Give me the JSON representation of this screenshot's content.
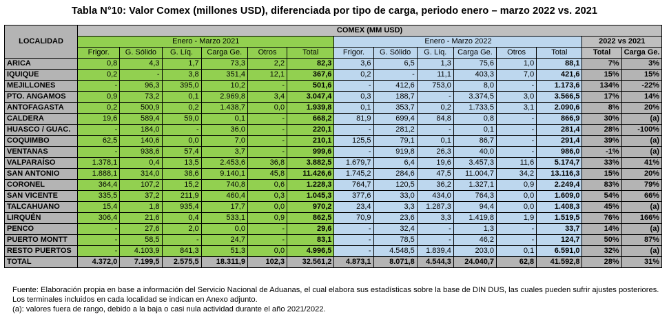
{
  "title": "Tabla N°10: Valor Comex (millones USD), diferenciada por tipo de carga, periodo enero – marzo 2022 vs. 2021",
  "headers": {
    "localidad": "LOCALIDAD",
    "comex": "COMEX (MM USD)",
    "period_2021": "Enero - Marzo 2021",
    "period_2022": "Enero - Marzo 2022",
    "comparison": "2022 vs 2021",
    "cols_2021": [
      "Frigor.",
      "G. Sólido",
      "G. Líq.",
      "Carga Ge.",
      "Otros",
      "Total"
    ],
    "cols_2022": [
      "Frigor.",
      "G. Sólido",
      "G. Líq.",
      "Carga Ge.",
      "Otros",
      "Total"
    ],
    "cols_cmp": [
      "Total",
      "Carga Ge."
    ]
  },
  "rows": [
    {
      "loc": "ARICA",
      "v": [
        "0,8",
        "4,3",
        "1,7",
        "73,3",
        "2,2",
        "82,3",
        "3,6",
        "6,5",
        "1,3",
        "75,6",
        "1,0",
        "88,1",
        "7%",
        "3%"
      ]
    },
    {
      "loc": "IQUIQUE",
      "v": [
        "0,2",
        "-",
        "3,8",
        "351,4",
        "12,1",
        "367,6",
        "0,2",
        "-",
        "11,1",
        "403,3",
        "7,0",
        "421,6",
        "15%",
        "15%"
      ]
    },
    {
      "loc": "MEJILLONES",
      "v": [
        "-",
        "96,3",
        "395,0",
        "10,2",
        "-",
        "501,6",
        "-",
        "412,6",
        "753,0",
        "8,0",
        "-",
        "1.173,6",
        "134%",
        "-22%"
      ]
    },
    {
      "loc": "PTO. ANGAMOS",
      "v": [
        "0,9",
        "73,2",
        "0,1",
        "2.969,8",
        "3,4",
        "3.047,4",
        "0,3",
        "188,7",
        "-",
        "3.374,5",
        "3,0",
        "3.566,5",
        "17%",
        "14%"
      ]
    },
    {
      "loc": "ANTOFAGASTA",
      "v": [
        "0,2",
        "500,9",
        "0,2",
        "1.438,7",
        "0,0",
        "1.939,8",
        "0,1",
        "353,7",
        "0,2",
        "1.733,5",
        "3,1",
        "2.090,6",
        "8%",
        "20%"
      ]
    },
    {
      "loc": "CALDERA",
      "v": [
        "19,6",
        "589,4",
        "59,0",
        "0,1",
        "-",
        "668,2",
        "81,9",
        "699,4",
        "84,8",
        "0,8",
        "-",
        "866,9",
        "30%",
        "(a)"
      ]
    },
    {
      "loc": "HUASCO / GUAC.",
      "v": [
        "-",
        "184,0",
        "-",
        "36,0",
        "-",
        "220,1",
        "-",
        "281,2",
        "-",
        "0,1",
        "-",
        "281,4",
        "28%",
        "-100%"
      ]
    },
    {
      "loc": "COQUIMBO",
      "v": [
        "62,5",
        "140,6",
        "0,0",
        "7,0",
        "-",
        "210,1",
        "125,5",
        "79,1",
        "0,1",
        "86,7",
        "-",
        "291,4",
        "39%",
        "(a)"
      ]
    },
    {
      "loc": "VENTANAS",
      "v": [
        "-",
        "938,6",
        "57,4",
        "3,7",
        "-",
        "999,6",
        "-",
        "919,8",
        "26,3",
        "40,0",
        "-",
        "986,0",
        "-1%",
        "(a)"
      ]
    },
    {
      "loc": "VALPARAÍSO",
      "v": [
        "1.378,1",
        "0,4",
        "13,5",
        "2.453,6",
        "36,8",
        "3.882,5",
        "1.679,7",
        "6,4",
        "19,6",
        "3.457,3",
        "11,6",
        "5.174,7",
        "33%",
        "41%"
      ]
    },
    {
      "loc": "SAN ANTONIO",
      "v": [
        "1.888,1",
        "314,0",
        "38,6",
        "9.140,1",
        "45,8",
        "11.426,6",
        "1.745,2",
        "284,6",
        "47,5",
        "11.004,7",
        "34,2",
        "13.116,3",
        "15%",
        "20%"
      ]
    },
    {
      "loc": "CORONEL",
      "v": [
        "364,4",
        "107,2",
        "15,2",
        "740,8",
        "0,6",
        "1.228,3",
        "764,7",
        "120,5",
        "36,2",
        "1.327,1",
        "0,9",
        "2.249,4",
        "83%",
        "79%"
      ]
    },
    {
      "loc": "SAN VICENTE",
      "v": [
        "335,5",
        "37,2",
        "211,9",
        "460,4",
        "0,3",
        "1.045,3",
        "377,6",
        "33,0",
        "434,0",
        "764,3",
        "0,0",
        "1.609,0",
        "54%",
        "66%"
      ]
    },
    {
      "loc": "TALCAHUANO",
      "v": [
        "15,4",
        "1,8",
        "935,4",
        "17,7",
        "0,0",
        "970,2",
        "23,4",
        "3,3",
        "1.287,3",
        "94,4",
        "0,0",
        "1.408,3",
        "45%",
        "(a)"
      ]
    },
    {
      "loc": "LIRQUÉN",
      "v": [
        "306,4",
        "21,6",
        "0,4",
        "533,1",
        "0,9",
        "862,5",
        "70,9",
        "23,6",
        "3,3",
        "1.419,8",
        "1,9",
        "1.519,5",
        "76%",
        "166%"
      ]
    },
    {
      "loc": "PENCO",
      "v": [
        "-",
        "27,6",
        "2,0",
        "0,0",
        "-",
        "29,6",
        "-",
        "32,4",
        "-",
        "1,3",
        "-",
        "33,7",
        "14%",
        "(a)"
      ]
    },
    {
      "loc": "PUERTO MONTT",
      "v": [
        "-",
        "58,5",
        "-",
        "24,7",
        "-",
        "83,1",
        "-",
        "78,5",
        "-",
        "46,2",
        "-",
        "124,7",
        "50%",
        "87%"
      ]
    },
    {
      "loc": "RESTO PUERTOS",
      "v": [
        "-",
        "4.103,9",
        "841,3",
        "51,3",
        "0,0",
        "4.996,5",
        "-",
        "4.548,5",
        "1.839,4",
        "203,0",
        "0,1",
        "6.591,0",
        "32%",
        "(a)"
      ]
    }
  ],
  "total": {
    "loc": "TOTAL",
    "v": [
      "4.372,0",
      "7.199,5",
      "2.575,5",
      "18.311,9",
      "102,3",
      "32.561,2",
      "4.873,1",
      "8.071,8",
      "4.544,3",
      "24.040,7",
      "62,8",
      "41.592,8",
      "28%",
      "31%"
    ]
  },
  "notes": [
    "Fuente: Elaboración propia en base a información del Servicio Nacional de Aduanas, el cual elabora sus estadísticas sobre la base de DIN DUS, las cuales pueden sufrir ajustes posteriores.",
    "Los terminales incluidos en cada localidad se indican en Anexo adjunto.",
    "(a): valores fuera de rango, debido a la baja o casi nula actividad durante el año 2021/2022."
  ]
}
